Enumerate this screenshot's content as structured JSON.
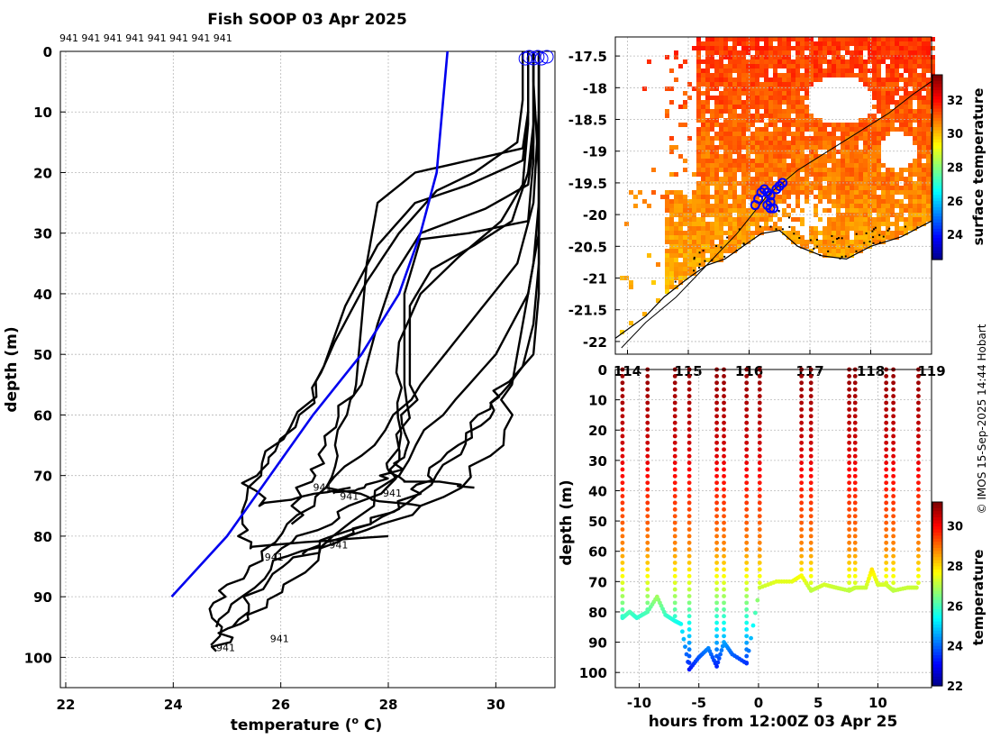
{
  "title": "Fish SOOP 03 Apr 2025",
  "credit": "© IMOS 15-Sep-2025 14:44 Hobart",
  "chart_data": [
    {
      "id": "profiles",
      "type": "line",
      "title": "Fish SOOP 03 Apr 2025",
      "xlabel": "temperature (",
      "xlabel_sup": "o",
      "xlabel_tail": " C)",
      "ylabel": "depth (m)",
      "xlim": [
        21.9,
        31.1
      ],
      "ylim": [
        105,
        0
      ],
      "xticks": [
        22,
        24,
        26,
        28,
        30
      ],
      "yticks": [
        0,
        10,
        20,
        30,
        40,
        50,
        60,
        70,
        80,
        90,
        100
      ],
      "grid": true,
      "top_labels": [
        "941",
        "941",
        "941",
        "941",
        "941",
        "941",
        "941",
        "941"
      ],
      "profile_labels": [
        {
          "text": "941",
          "t": 26.6,
          "d": 72.5
        },
        {
          "text": "941",
          "t": 27.1,
          "d": 74
        },
        {
          "text": "941",
          "t": 27.9,
          "d": 73.5
        },
        {
          "text": "941",
          "t": 25.7,
          "d": 84
        },
        {
          "text": "941",
          "t": 26.9,
          "d": 82
        },
        {
          "text": "941",
          "t": 24.8,
          "d": 99
        },
        {
          "text": "941",
          "t": 25.8,
          "d": 97.5
        }
      ],
      "climatology": {
        "name": "climatology",
        "color": "#0000ee",
        "points": [
          [
            29.1,
            0
          ],
          [
            29.05,
            5
          ],
          [
            29.0,
            10
          ],
          [
            28.9,
            20
          ],
          [
            28.6,
            30
          ],
          [
            28.2,
            40
          ],
          [
            27.5,
            50
          ],
          [
            26.6,
            60
          ],
          [
            25.8,
            70
          ],
          [
            25.0,
            80
          ],
          [
            23.97,
            90
          ]
        ]
      },
      "series_color": "#000000",
      "series": [
        {
          "name": "profile 1",
          "points": [
            [
              30.7,
              0
            ],
            [
              30.7,
              5
            ],
            [
              30.8,
              20
            ],
            [
              30.8,
              30
            ],
            [
              30.6,
              40
            ],
            [
              30.0,
              50
            ],
            [
              29.0,
              60
            ],
            [
              28.2,
              70
            ],
            [
              27.0,
              80
            ],
            [
              26.2,
              88
            ],
            [
              25.5,
              93
            ],
            [
              25.0,
              96
            ],
            [
              24.8,
              99
            ]
          ]
        },
        {
          "name": "profile 2",
          "points": [
            [
              30.8,
              0
            ],
            [
              30.8,
              10
            ],
            [
              30.7,
              25
            ],
            [
              30.4,
              35
            ],
            [
              29.5,
              45
            ],
            [
              28.6,
              55
            ],
            [
              27.6,
              65
            ],
            [
              26.8,
              72
            ],
            [
              26.2,
              78
            ],
            [
              25.6,
              84
            ],
            [
              25.0,
              88
            ],
            [
              24.8,
              92
            ],
            [
              24.7,
              98
            ]
          ]
        },
        {
          "name": "profile 3",
          "points": [
            [
              30.6,
              0
            ],
            [
              30.6,
              10
            ],
            [
              30.5,
              18
            ],
            [
              29.5,
              22
            ],
            [
              28.5,
              25
            ],
            [
              27.8,
              32
            ],
            [
              27.2,
              42
            ],
            [
              26.8,
              52
            ],
            [
              26.2,
              62
            ],
            [
              25.5,
              70
            ],
            [
              25.3,
              78
            ],
            [
              25.3,
              82
            ],
            [
              26.5,
              81
            ],
            [
              28.0,
              80
            ]
          ]
        },
        {
          "name": "profile 4",
          "points": [
            [
              30.7,
              0
            ],
            [
              30.7,
              15
            ],
            [
              30.6,
              22
            ],
            [
              29.8,
              26
            ],
            [
              28.6,
              30
            ],
            [
              28.1,
              37
            ],
            [
              27.8,
              45
            ],
            [
              27.5,
              55
            ],
            [
              27.1,
              65
            ],
            [
              27.0,
              72
            ],
            [
              27.8,
              74
            ],
            [
              28.6,
              75
            ]
          ]
        },
        {
          "name": "profile 5",
          "points": [
            [
              30.8,
              0
            ],
            [
              30.8,
              20
            ],
            [
              30.8,
              35
            ],
            [
              30.7,
              45
            ],
            [
              30.5,
              52
            ],
            [
              30.0,
              58
            ],
            [
              29.5,
              63
            ],
            [
              29.0,
              70
            ],
            [
              28.0,
              76
            ],
            [
              27.0,
              80
            ],
            [
              26.4,
              83
            ]
          ]
        },
        {
          "name": "profile 6",
          "points": [
            [
              30.6,
              0
            ],
            [
              30.6,
              10
            ],
            [
              30.5,
              16
            ],
            [
              29.5,
              18
            ],
            [
              28.5,
              20
            ],
            [
              27.8,
              25
            ],
            [
              27.6,
              35
            ],
            [
              27.5,
              45
            ],
            [
              27.4,
              55
            ],
            [
              27.0,
              62
            ],
            [
              26.8,
              68
            ],
            [
              26.4,
              72
            ],
            [
              26.2,
              78
            ]
          ]
        },
        {
          "name": "profile 7",
          "points": [
            [
              30.7,
              0
            ],
            [
              30.7,
              12
            ],
            [
              30.6,
              20
            ],
            [
              30.3,
              28
            ],
            [
              29.6,
              32
            ],
            [
              28.8,
              36
            ],
            [
              28.4,
              42
            ],
            [
              28.4,
              50
            ],
            [
              28.4,
              60
            ],
            [
              28.4,
              66
            ],
            [
              28.0,
              70
            ],
            [
              27.5,
              72
            ],
            [
              27.0,
              73
            ]
          ]
        },
        {
          "name": "profile 8",
          "points": [
            [
              30.8,
              0
            ],
            [
              30.8,
              25
            ],
            [
              30.7,
              35
            ],
            [
              30.5,
              45
            ],
            [
              30.3,
              55
            ],
            [
              30.0,
              65
            ],
            [
              29.2,
              72
            ],
            [
              28.0,
              78
            ],
            [
              26.8,
              82
            ],
            [
              26.0,
              85
            ],
            [
              25.4,
              90
            ],
            [
              25.1,
              95
            ]
          ]
        },
        {
          "name": "profile 9",
          "points": [
            [
              30.5,
              0
            ],
            [
              30.5,
              8
            ],
            [
              30.4,
              15
            ],
            [
              29.6,
              20
            ],
            [
              28.9,
              23
            ],
            [
              28.2,
              30
            ],
            [
              27.6,
              38
            ],
            [
              27.0,
              48
            ],
            [
              26.5,
              58
            ],
            [
              26.0,
              66
            ],
            [
              25.4,
              70
            ],
            [
              25.6,
              75
            ],
            [
              26.6,
              73
            ],
            [
              27.3,
              72
            ]
          ]
        },
        {
          "name": "profile 10",
          "points": [
            [
              30.7,
              0
            ],
            [
              30.7,
              18
            ],
            [
              30.6,
              28
            ],
            [
              29.5,
              30
            ],
            [
              28.6,
              31
            ],
            [
              28.3,
              40
            ],
            [
              28.3,
              55
            ],
            [
              28.3,
              66
            ],
            [
              28.0,
              72
            ],
            [
              27.2,
              76
            ],
            [
              26.4,
              80
            ],
            [
              25.9,
              84
            ]
          ]
        },
        {
          "name": "profile 11",
          "points": [
            [
              30.6,
              0
            ],
            [
              30.6,
              12
            ],
            [
              30.5,
              22
            ],
            [
              30.1,
              28
            ],
            [
              29.3,
              34
            ],
            [
              28.6,
              40
            ],
            [
              28.2,
              48
            ],
            [
              28.1,
              58
            ],
            [
              28.1,
              68
            ],
            [
              28.2,
              71
            ],
            [
              29.0,
              71
            ],
            [
              29.6,
              72
            ]
          ]
        },
        {
          "name": "profile 12",
          "points": [
            [
              30.8,
              0
            ],
            [
              30.8,
              30
            ],
            [
              30.8,
              40
            ],
            [
              30.7,
              50
            ],
            [
              30.1,
              56
            ],
            [
              29.8,
              60
            ],
            [
              29.3,
              65
            ],
            [
              28.8,
              70
            ],
            [
              28.5,
              73
            ],
            [
              27.6,
              78
            ],
            [
              26.8,
              81
            ],
            [
              26.0,
              84
            ],
            [
              25.2,
              90
            ],
            [
              24.8,
              95
            ]
          ]
        }
      ]
    },
    {
      "id": "map",
      "type": "heatmap",
      "xlim": [
        113.8,
        119.0
      ],
      "ylim": [
        -22.2,
        -17.2
      ],
      "xticks": [
        114,
        115,
        116,
        117,
        118,
        119
      ],
      "yticks": [
        -17.5,
        -18,
        -18.5,
        -19,
        -19.5,
        -20,
        -20.5,
        -21,
        -21.5,
        -22
      ],
      "ytick_labels": [
        "-17.5",
        "-18",
        "-18.5",
        "-19",
        "-19.5",
        "-20",
        "-20.5",
        "-21",
        "-21.5",
        "-22"
      ],
      "track_color": "#0000ff",
      "track": [
        [
          116.1,
          -19.85
        ],
        [
          116.15,
          -19.75
        ],
        [
          116.2,
          -19.65
        ],
        [
          116.25,
          -19.6
        ],
        [
          116.3,
          -19.65
        ],
        [
          116.35,
          -19.7
        ],
        [
          116.35,
          -19.8
        ],
        [
          116.3,
          -19.85
        ],
        [
          116.35,
          -19.9
        ],
        [
          116.4,
          -19.9
        ],
        [
          116.45,
          -19.6
        ],
        [
          116.5,
          -19.55
        ],
        [
          116.55,
          -19.5
        ]
      ],
      "coastline": [
        [
          113.8,
          -21.95
        ],
        [
          114.3,
          -21.6
        ],
        [
          114.6,
          -21.3
        ],
        [
          115.0,
          -21.0
        ],
        [
          115.3,
          -20.8
        ],
        [
          115.6,
          -20.7
        ],
        [
          115.9,
          -20.5
        ],
        [
          116.2,
          -20.3
        ],
        [
          116.5,
          -20.25
        ],
        [
          116.8,
          -20.5
        ],
        [
          117.2,
          -20.65
        ],
        [
          117.6,
          -20.7
        ],
        [
          118.0,
          -20.5
        ],
        [
          118.5,
          -20.35
        ],
        [
          118.9,
          -20.15
        ],
        [
          119.0,
          -20.1
        ]
      ],
      "shelf_contour": [
        [
          113.9,
          -22.1
        ],
        [
          114.3,
          -21.7
        ],
        [
          114.8,
          -21.3
        ],
        [
          115.3,
          -20.8
        ],
        [
          115.8,
          -20.3
        ],
        [
          116.3,
          -19.7
        ],
        [
          116.8,
          -19.3
        ],
        [
          117.3,
          -19.0
        ],
        [
          117.8,
          -18.7
        ],
        [
          118.3,
          -18.4
        ],
        [
          118.7,
          -18.1
        ],
        [
          119.0,
          -17.9
        ]
      ],
      "colorbar": {
        "label": "surface temperature",
        "min": 22.5,
        "max": 33.5,
        "ticks": [
          24,
          26,
          28,
          30,
          32
        ]
      }
    },
    {
      "id": "section",
      "type": "scatter",
      "xlabel": "hours from 12:00Z 03 Apr 25",
      "ylabel": "depth (m)",
      "xlim": [
        -12,
        14.5
      ],
      "ylim": [
        105,
        0
      ],
      "xticks": [
        -10,
        -5,
        0,
        5,
        10
      ],
      "yticks": [
        0,
        10,
        20,
        30,
        40,
        50,
        60,
        70,
        80,
        90,
        100
      ],
      "colorbar": {
        "label": "temperature",
        "min": 22,
        "max": 31.2,
        "ticks": [
          22,
          24,
          26,
          28,
          30
        ]
      },
      "casts": [
        {
          "t": -11.4,
          "maxd": 82
        },
        {
          "t": -9.3,
          "maxd": 80
        },
        {
          "t": -7.0,
          "maxd": 83
        },
        {
          "t": -5.8,
          "maxd": 99
        },
        {
          "t": -3.5,
          "maxd": 98
        },
        {
          "t": -2.9,
          "maxd": 90
        },
        {
          "t": -1.0,
          "maxd": 97
        },
        {
          "t": 0.1,
          "maxd": 72
        },
        {
          "t": 3.6,
          "maxd": 68
        },
        {
          "t": 4.4,
          "maxd": 73
        },
        {
          "t": 7.6,
          "maxd": 73
        },
        {
          "t": 8.1,
          "maxd": 72
        },
        {
          "t": 10.7,
          "maxd": 71
        },
        {
          "t": 11.3,
          "maxd": 73
        },
        {
          "t": 13.4,
          "maxd": 72
        }
      ],
      "surface_track": [
        [
          -11.4,
          82
        ],
        [
          -10.8,
          80
        ],
        [
          -10.2,
          82
        ],
        [
          -9.3,
          80
        ],
        [
          -8.5,
          75
        ],
        [
          -7.8,
          81
        ],
        [
          -7.0,
          83
        ],
        [
          -6.5,
          84
        ],
        [
          -5.8,
          99
        ],
        [
          -5.0,
          95
        ],
        [
          -4.2,
          92
        ],
        [
          -3.5,
          98
        ],
        [
          -2.9,
          90
        ],
        [
          -2.2,
          94
        ],
        [
          -1.0,
          97
        ],
        [
          0.1,
          72
        ],
        [
          1.5,
          70
        ],
        [
          2.8,
          70
        ],
        [
          3.6,
          68
        ],
        [
          4.4,
          73
        ],
        [
          5.5,
          71
        ],
        [
          6.5,
          72
        ],
        [
          7.6,
          73
        ],
        [
          8.1,
          72
        ],
        [
          9.0,
          72
        ],
        [
          9.5,
          66
        ],
        [
          10.0,
          71
        ],
        [
          10.7,
          71
        ],
        [
          11.3,
          73
        ],
        [
          12.5,
          72
        ],
        [
          13.4,
          72
        ]
      ]
    }
  ]
}
